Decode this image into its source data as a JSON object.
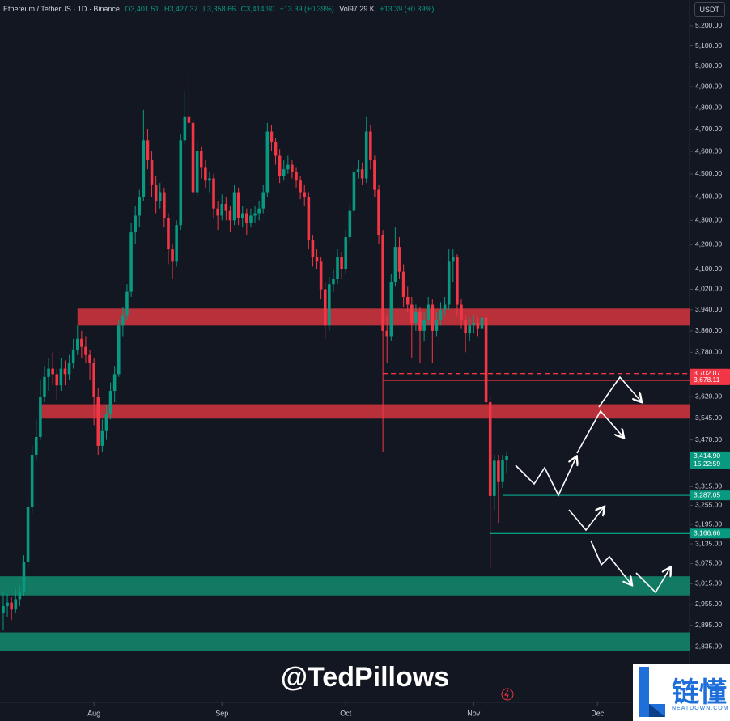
{
  "header": {
    "symbol": "Ethereum / TetherUS · 1D · Binance",
    "open": "O3,401.51",
    "high": "H3,427.37",
    "low": "L3,358.66",
    "close": "C3,414.90",
    "change": "+13.39 (+0.39%)",
    "volume": "Vol97.29 K",
    "volume_change": "+13.39 (+0.39%)",
    "currency": "USDT"
  },
  "chart_data": {
    "type": "candlestick",
    "log_scale": true,
    "grid": false,
    "up_color": "#089981",
    "down_color": "#f23645",
    "xlim": [
      -0.78,
      166.3
    ],
    "xticks": [
      {
        "value": 22,
        "label": "Aug"
      },
      {
        "value": 53,
        "label": "Sep"
      },
      {
        "value": 83,
        "label": "Oct"
      },
      {
        "value": 114,
        "label": "Nov"
      },
      {
        "value": 144,
        "label": "Dec"
      }
    ],
    "ylim": [
      2685,
      5333
    ],
    "yticks": [
      {
        "value": 5200,
        "label": "5,200.00"
      },
      {
        "value": 5100,
        "label": "5,100.00"
      },
      {
        "value": 5000,
        "label": "5,000.00"
      },
      {
        "value": 4900,
        "label": "4,900.00"
      },
      {
        "value": 4800,
        "label": "4,800.00"
      },
      {
        "value": 4700,
        "label": "4,700.00"
      },
      {
        "value": 4600,
        "label": "4,600.00"
      },
      {
        "value": 4500,
        "label": "4,500.00"
      },
      {
        "value": 4400,
        "label": "4,400.00"
      },
      {
        "value": 4300,
        "label": "4,300.00"
      },
      {
        "value": 4200,
        "label": "4,200.00"
      },
      {
        "value": 4100,
        "label": "4,100.00"
      },
      {
        "value": 4020,
        "label": "4,020.00"
      },
      {
        "value": 3940,
        "label": "3,940.00"
      },
      {
        "value": 3860,
        "label": "3,860.00"
      },
      {
        "value": 3780,
        "label": "3,780.00"
      },
      {
        "value": 3620,
        "label": "3,620.00"
      },
      {
        "value": 3545,
        "label": "3,545.00"
      },
      {
        "value": 3470,
        "label": "3,470.00"
      },
      {
        "value": 3315,
        "label": "3,315.00"
      },
      {
        "value": 3255,
        "label": "3,255.00"
      },
      {
        "value": 3195,
        "label": "3,195.00"
      },
      {
        "value": 3135,
        "label": "3,135.00"
      },
      {
        "value": 3075,
        "label": "3,075.00"
      },
      {
        "value": 3015,
        "label": "3,015.00"
      },
      {
        "value": 2955,
        "label": "2,955.00"
      },
      {
        "value": 2895,
        "label": "2,895.00"
      },
      {
        "value": 2835,
        "label": "2,835.00"
      }
    ],
    "zones": [
      {
        "from": 3880,
        "to": 3945,
        "start": 18,
        "color": "#b8303a"
      },
      {
        "from": 3543,
        "to": 3593,
        "start": 9,
        "color": "#b8303a"
      },
      {
        "from": 2981,
        "to": 3037,
        "start": -0.78,
        "color": "#127a63"
      },
      {
        "from": 2823,
        "to": 2875,
        "start": -0.78,
        "color": "#127a63"
      }
    ],
    "price_tags": [
      {
        "value": 3702.07,
        "label": "3,702.07",
        "color": "#f23645",
        "line": "dashed",
        "start": 92
      },
      {
        "value": 3678.11,
        "label": "3,678.11",
        "color": "#f23645",
        "line": "solid",
        "start": 92
      },
      {
        "value": 3414.9,
        "label": "3,414.90",
        "sublabel": "15:22:59",
        "color": "#089981"
      },
      {
        "value": 3287.05,
        "label": "3,287.05",
        "color": "#089981",
        "line": "solid",
        "start": 121
      },
      {
        "value": 3166.66,
        "label": "3,166.66",
        "color": "#089981",
        "line": "solid",
        "start": 118
      }
    ],
    "ohlc": [
      [
        2930,
        2990,
        2880,
        2950
      ],
      [
        2950,
        2985,
        2920,
        2960
      ],
      [
        2960,
        2975,
        2910,
        2940
      ],
      [
        2940,
        3000,
        2930,
        2970
      ],
      [
        2970,
        3010,
        2950,
        2990
      ],
      [
        2990,
        3100,
        2980,
        3080
      ],
      [
        3080,
        3270,
        3060,
        3250
      ],
      [
        3250,
        3450,
        3230,
        3420
      ],
      [
        3420,
        3540,
        3400,
        3480
      ],
      [
        3480,
        3680,
        3470,
        3620
      ],
      [
        3620,
        3730,
        3600,
        3690
      ],
      [
        3690,
        3760,
        3640,
        3720
      ],
      [
        3720,
        3780,
        3660,
        3700
      ],
      [
        3700,
        3720,
        3610,
        3660
      ],
      [
        3660,
        3760,
        3640,
        3720
      ],
      [
        3720,
        3750,
        3660,
        3700
      ],
      [
        3700,
        3770,
        3680,
        3740
      ],
      [
        3740,
        3830,
        3720,
        3790
      ],
      [
        3790,
        3880,
        3770,
        3830
      ],
      [
        3830,
        3860,
        3760,
        3800
      ],
      [
        3800,
        3840,
        3740,
        3770
      ],
      [
        3770,
        3790,
        3680,
        3740
      ],
      [
        3740,
        3760,
        3520,
        3620
      ],
      [
        3620,
        3650,
        3420,
        3450
      ],
      [
        3450,
        3540,
        3430,
        3500
      ],
      [
        3500,
        3590,
        3470,
        3560
      ],
      [
        3560,
        3670,
        3540,
        3640
      ],
      [
        3640,
        3730,
        3600,
        3700
      ],
      [
        3700,
        3900,
        3690,
        3880
      ],
      [
        3880,
        3950,
        3840,
        3920
      ],
      [
        3920,
        4040,
        3900,
        4010
      ],
      [
        4010,
        4290,
        3990,
        4250
      ],
      [
        4250,
        4360,
        4200,
        4320
      ],
      [
        4320,
        4430,
        4270,
        4400
      ],
      [
        4400,
        4790,
        4380,
        4650
      ],
      [
        4650,
        4700,
        4520,
        4560
      ],
      [
        4560,
        4600,
        4400,
        4450
      ],
      [
        4450,
        4490,
        4330,
        4380
      ],
      [
        4380,
        4460,
        4350,
        4420
      ],
      [
        4420,
        4440,
        4270,
        4310
      ],
      [
        4310,
        4330,
        4120,
        4180
      ],
      [
        4180,
        4200,
        4060,
        4130
      ],
      [
        4130,
        4300,
        4110,
        4280
      ],
      [
        4280,
        4680,
        4260,
        4650
      ],
      [
        4650,
        4880,
        4630,
        4760
      ],
      [
        4760,
        4950,
        4700,
        4730
      ],
      [
        4730,
        4750,
        4380,
        4420
      ],
      [
        4420,
        4640,
        4400,
        4600
      ],
      [
        4600,
        4620,
        4480,
        4530
      ],
      [
        4530,
        4560,
        4440,
        4470
      ],
      [
        4470,
        4510,
        4420,
        4480
      ],
      [
        4480,
        4500,
        4310,
        4350
      ],
      [
        4350,
        4380,
        4260,
        4320
      ],
      [
        4320,
        4410,
        4300,
        4370
      ],
      [
        4370,
        4400,
        4300,
        4340
      ],
      [
        4340,
        4360,
        4250,
        4300
      ],
      [
        4300,
        4450,
        4280,
        4420
      ],
      [
        4420,
        4440,
        4280,
        4310
      ],
      [
        4310,
        4360,
        4270,
        4330
      ],
      [
        4330,
        4350,
        4240,
        4290
      ],
      [
        4290,
        4350,
        4270,
        4320
      ],
      [
        4320,
        4360,
        4290,
        4330
      ],
      [
        4330,
        4380,
        4300,
        4350
      ],
      [
        4350,
        4450,
        4330,
        4420
      ],
      [
        4420,
        4730,
        4400,
        4690
      ],
      [
        4690,
        4720,
        4600,
        4640
      ],
      [
        4640,
        4660,
        4540,
        4580
      ],
      [
        4580,
        4610,
        4460,
        4490
      ],
      [
        4490,
        4560,
        4470,
        4520
      ],
      [
        4520,
        4580,
        4500,
        4540
      ],
      [
        4540,
        4560,
        4480,
        4510
      ],
      [
        4510,
        4530,
        4440,
        4470
      ],
      [
        4470,
        4490,
        4390,
        4420
      ],
      [
        4420,
        4450,
        4360,
        4400
      ],
      [
        4400,
        4420,
        4180,
        4220
      ],
      [
        4220,
        4240,
        4110,
        4150
      ],
      [
        4150,
        4180,
        4100,
        4130
      ],
      [
        4130,
        4150,
        3980,
        4020
      ],
      [
        4020,
        4050,
        3830,
        3880
      ],
      [
        3880,
        4070,
        3860,
        4040
      ],
      [
        4040,
        4100,
        4010,
        4060
      ],
      [
        4060,
        4180,
        4040,
        4150
      ],
      [
        4150,
        4170,
        4060,
        4100
      ],
      [
        4100,
        4260,
        4080,
        4230
      ],
      [
        4230,
        4370,
        4210,
        4340
      ],
      [
        4340,
        4540,
        4320,
        4510
      ],
      [
        4510,
        4560,
        4480,
        4520
      ],
      [
        4520,
        4550,
        4450,
        4480
      ],
      [
        4480,
        4760,
        4460,
        4690
      ],
      [
        4690,
        4720,
        4520,
        4560
      ],
      [
        4560,
        4580,
        4400,
        4430
      ],
      [
        4430,
        4450,
        4200,
        4240
      ],
      [
        4240,
        4260,
        3430,
        3860
      ],
      [
        3860,
        3920,
        3740,
        3840
      ],
      [
        3840,
        4080,
        3820,
        4050
      ],
      [
        4050,
        4270,
        4030,
        4190
      ],
      [
        4190,
        4230,
        4060,
        4090
      ],
      [
        4090,
        4120,
        3950,
        3990
      ],
      [
        3990,
        4030,
        3930,
        3960
      ],
      [
        3960,
        3990,
        3760,
        3890
      ],
      [
        3890,
        3960,
        3860,
        3930
      ],
      [
        3930,
        3950,
        3740,
        3860
      ],
      [
        3860,
        3930,
        3820,
        3900
      ],
      [
        3900,
        3990,
        3880,
        3960
      ],
      [
        3960,
        3980,
        3740,
        3860
      ],
      [
        3860,
        3930,
        3840,
        3900
      ],
      [
        3900,
        3970,
        3880,
        3940
      ],
      [
        3940,
        3990,
        3920,
        3960
      ],
      [
        3960,
        4180,
        3940,
        4130
      ],
      [
        4130,
        4180,
        4050,
        4150
      ],
      [
        4150,
        4160,
        3920,
        3960
      ],
      [
        3960,
        3980,
        3870,
        3900
      ],
      [
        3900,
        3920,
        3780,
        3850
      ],
      [
        3850,
        3910,
        3820,
        3880
      ],
      [
        3880,
        3920,
        3850,
        3890
      ],
      [
        3890,
        3910,
        3840,
        3870
      ],
      [
        3870,
        3930,
        3850,
        3910
      ],
      [
        3910,
        3920,
        3560,
        3600
      ],
      [
        3600,
        3620,
        3060,
        3285
      ],
      [
        3285,
        3420,
        3240,
        3400
      ],
      [
        3400,
        3420,
        3200,
        3330
      ],
      [
        3330,
        3420,
        3310,
        3401.51
      ],
      [
        3401.51,
        3427.37,
        3358.66,
        3414.9
      ]
    ]
  },
  "watermark": {
    "handle": "@TedPillows",
    "logo_text": "链懂",
    "logo_site": "NEATDOWN.COM"
  }
}
